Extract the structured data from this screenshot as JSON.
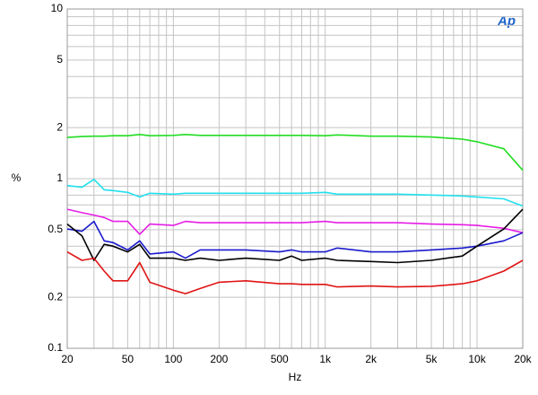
{
  "chart_data": {
    "type": "line",
    "logo": "Ap",
    "xlabel": "Hz",
    "ylabel": "%",
    "xlog": true,
    "ylog": true,
    "grid": true,
    "xlim": [
      20,
      20000
    ],
    "ylim": [
      0.1,
      10
    ],
    "xticks": [
      20,
      50,
      100,
      200,
      500,
      {
        "value": 1000,
        "label": "1k"
      },
      {
        "value": 2000,
        "label": "2k"
      },
      {
        "value": 5000,
        "label": "5k"
      },
      {
        "value": 10000,
        "label": "10k"
      },
      {
        "value": 20000,
        "label": "20k"
      }
    ],
    "xminor_ticks": [
      30,
      40,
      60,
      70,
      80,
      90,
      300,
      400,
      600,
      700,
      800,
      900,
      3000,
      4000,
      6000,
      7000,
      8000,
      9000
    ],
    "yticks": [
      0.1,
      0.2,
      0.5,
      1,
      2,
      5,
      10
    ],
    "yminor_ticks": [
      0.3,
      0.4,
      0.6,
      0.7,
      0.8,
      0.9,
      3,
      4,
      6,
      7,
      8,
      9
    ],
    "x": [
      20,
      25,
      30,
      35,
      40,
      50,
      60,
      70,
      100,
      120,
      150,
      200,
      300,
      500,
      600,
      700,
      1000,
      1200,
      2000,
      3000,
      5000,
      8000,
      10000,
      15000,
      20000
    ],
    "series": [
      {
        "name": "green",
        "color": "#22dd22",
        "values": [
          1.75,
          1.77,
          1.78,
          1.78,
          1.79,
          1.79,
          1.82,
          1.79,
          1.8,
          1.82,
          1.8,
          1.8,
          1.8,
          1.8,
          1.8,
          1.8,
          1.79,
          1.81,
          1.78,
          1.78,
          1.76,
          1.71,
          1.65,
          1.5,
          1.12
        ]
      },
      {
        "name": "cyan",
        "color": "#22e0ee",
        "values": [
          0.91,
          0.89,
          0.99,
          0.86,
          0.85,
          0.83,
          0.78,
          0.82,
          0.81,
          0.82,
          0.82,
          0.82,
          0.82,
          0.82,
          0.82,
          0.82,
          0.83,
          0.81,
          0.81,
          0.81,
          0.8,
          0.79,
          0.78,
          0.76,
          0.69
        ]
      },
      {
        "name": "magenta",
        "color": "#e61ee6",
        "values": [
          0.66,
          0.63,
          0.61,
          0.59,
          0.56,
          0.56,
          0.47,
          0.54,
          0.53,
          0.56,
          0.55,
          0.55,
          0.55,
          0.55,
          0.55,
          0.55,
          0.56,
          0.55,
          0.55,
          0.55,
          0.54,
          0.535,
          0.53,
          0.51,
          0.48
        ]
      },
      {
        "name": "blue",
        "color": "#1a1acc",
        "values": [
          0.505,
          0.49,
          0.56,
          0.43,
          0.42,
          0.38,
          0.43,
          0.36,
          0.37,
          0.34,
          0.38,
          0.38,
          0.38,
          0.37,
          0.38,
          0.37,
          0.37,
          0.39,
          0.37,
          0.37,
          0.38,
          0.39,
          0.4,
          0.43,
          0.48
        ]
      },
      {
        "name": "black",
        "color": "#000000",
        "values": [
          0.54,
          0.46,
          0.33,
          0.41,
          0.4,
          0.37,
          0.41,
          0.34,
          0.34,
          0.33,
          0.34,
          0.33,
          0.34,
          0.33,
          0.35,
          0.33,
          0.34,
          0.33,
          0.325,
          0.32,
          0.33,
          0.35,
          0.4,
          0.505,
          0.66
        ]
      },
      {
        "name": "red",
        "color": "#e01414",
        "values": [
          0.37,
          0.33,
          0.34,
          0.285,
          0.25,
          0.25,
          0.32,
          0.245,
          0.22,
          0.21,
          0.225,
          0.245,
          0.25,
          0.24,
          0.24,
          0.238,
          0.238,
          0.23,
          0.233,
          0.23,
          0.232,
          0.24,
          0.25,
          0.285,
          0.33
        ]
      }
    ]
  }
}
